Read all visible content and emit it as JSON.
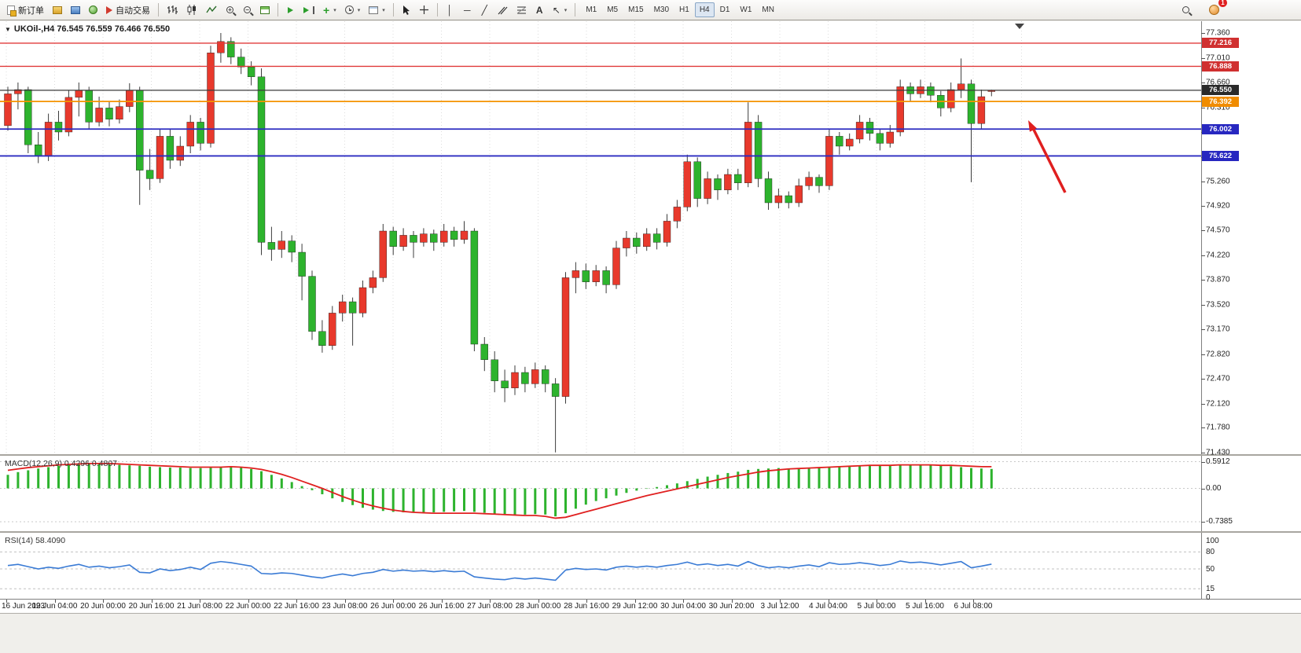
{
  "toolbar": {
    "new_order_label": "新订单",
    "autotrading_label": "自动交易",
    "timeframes": [
      "M1",
      "M5",
      "M15",
      "M30",
      "H1",
      "H4",
      "D1",
      "W1",
      "MN"
    ],
    "active_timeframe": "H4",
    "notification_badge": "1",
    "text_tool_label": "A"
  },
  "chart": {
    "title": "UKOil-,H4 76.545 76.559 76.466 76.550",
    "symbol": "UKOil-",
    "timeframe": "H4",
    "open": "76.545",
    "high": "76.559",
    "low": "76.466",
    "close": "76.550"
  },
  "price_scale": {
    "ticks": [
      {
        "label": "77.360",
        "v": 77.36
      },
      {
        "label": "77.010",
        "v": 77.01
      },
      {
        "label": "76.660",
        "v": 76.66
      },
      {
        "label": "76.310",
        "v": 76.31
      },
      {
        "label": "75.960",
        "v": 75.96
      },
      {
        "label": "75.610",
        "v": 75.61
      },
      {
        "label": "75.260",
        "v": 75.26
      },
      {
        "label": "74.920",
        "v": 74.92
      },
      {
        "label": "74.570",
        "v": 74.57
      },
      {
        "label": "74.220",
        "v": 74.22
      },
      {
        "label": "73.870",
        "v": 73.87
      },
      {
        "label": "73.520",
        "v": 73.52
      },
      {
        "label": "73.170",
        "v": 73.17
      },
      {
        "label": "72.820",
        "v": 72.82
      },
      {
        "label": "72.470",
        "v": 72.47
      },
      {
        "label": "72.120",
        "v": 72.12
      },
      {
        "label": "71.780",
        "v": 71.78
      },
      {
        "label": "71.430",
        "v": 71.43
      }
    ],
    "badges": [
      {
        "label": "77.216",
        "v": 77.216,
        "color": "#d03030"
      },
      {
        "label": "76.888",
        "v": 76.888,
        "color": "#d03030"
      },
      {
        "label": "76.550",
        "v": 76.55,
        "color": "#2a2a2a"
      },
      {
        "label": "76.392",
        "v": 76.392,
        "color": "#f08c00"
      },
      {
        "label": "76.002",
        "v": 76.002,
        "color": "#2727c0"
      },
      {
        "label": "75.622",
        "v": 75.622,
        "color": "#2727c0"
      }
    ]
  },
  "hlines": [
    {
      "v": 77.216,
      "color": "#e03b3b",
      "w": 1.4
    },
    {
      "v": 76.888,
      "color": "#e03b3b",
      "w": 1.4
    },
    {
      "v": 76.55,
      "color": "#3a3a3a",
      "w": 1.2
    },
    {
      "v": 76.392,
      "color": "#f59300",
      "w": 1.8
    },
    {
      "v": 76.002,
      "color": "#2b2bc0",
      "w": 1.8
    },
    {
      "v": 75.622,
      "color": "#2b2bc0",
      "w": 1.8
    }
  ],
  "time_axis": [
    "16 Jun 2023",
    "19 Jun 04:00",
    "20 Jun 00:00",
    "20 Jun 16:00",
    "21 Jun 08:00",
    "22 Jun 00:00",
    "22 Jun 16:00",
    "23 Jun 08:00",
    "26 Jun 00:00",
    "26 Jun 16:00",
    "27 Jun 08:00",
    "28 Jun 00:00",
    "28 Jun 16:00",
    "29 Jun 12:00",
    "30 Jun 04:00",
    "30 Jun 20:00",
    "3 Jul 12:00",
    "4 Jul 04:00",
    "5 Jul 00:00",
    "5 Jul 16:00",
    "6 Jul 08:00"
  ],
  "annotation": {
    "type": "arrow",
    "color": "#e01f1f"
  },
  "chart_data": {
    "type": "candlestick",
    "symbol": "UKOil-",
    "period": "H4",
    "price_range": [
      71.43,
      77.36
    ],
    "up_color": "#e8392c",
    "down_color": "#2db32d",
    "wick_color": "#3c3c3c",
    "candles": [
      [
        76.05,
        76.6,
        75.98,
        76.5
      ],
      [
        76.5,
        76.66,
        76.28,
        76.56
      ],
      [
        76.56,
        76.6,
        75.66,
        75.78
      ],
      [
        75.78,
        75.96,
        75.52,
        75.62
      ],
      [
        75.62,
        76.22,
        75.55,
        76.1
      ],
      [
        76.1,
        76.26,
        75.84,
        75.96
      ],
      [
        75.96,
        76.55,
        75.9,
        76.45
      ],
      [
        76.45,
        76.66,
        76.18,
        76.55
      ],
      [
        76.55,
        76.6,
        76.0,
        76.1
      ],
      [
        76.1,
        76.46,
        76.04,
        76.3
      ],
      [
        76.3,
        76.4,
        76.04,
        76.14
      ],
      [
        76.14,
        76.42,
        76.08,
        76.32
      ],
      [
        76.32,
        76.65,
        76.24,
        76.55
      ],
      [
        76.55,
        76.6,
        74.93,
        75.42
      ],
      [
        75.42,
        75.72,
        75.14,
        75.3
      ],
      [
        75.3,
        76.0,
        75.24,
        75.9
      ],
      [
        75.9,
        76.0,
        75.44,
        75.56
      ],
      [
        75.56,
        75.9,
        75.48,
        75.76
      ],
      [
        75.76,
        76.2,
        75.66,
        76.1
      ],
      [
        76.1,
        76.16,
        75.7,
        75.8
      ],
      [
        75.8,
        77.18,
        75.74,
        77.08
      ],
      [
        77.08,
        77.36,
        76.94,
        77.24
      ],
      [
        77.24,
        77.3,
        76.92,
        77.02
      ],
      [
        77.02,
        77.14,
        76.78,
        76.88
      ],
      [
        76.88,
        76.96,
        76.62,
        76.74
      ],
      [
        76.74,
        76.86,
        74.22,
        74.4
      ],
      [
        74.4,
        74.62,
        74.14,
        74.3
      ],
      [
        74.3,
        74.56,
        74.18,
        74.42
      ],
      [
        74.42,
        74.5,
        74.12,
        74.26
      ],
      [
        74.26,
        74.38,
        73.58,
        73.92
      ],
      [
        73.92,
        74.0,
        73.02,
        73.14
      ],
      [
        73.14,
        73.3,
        72.84,
        72.94
      ],
      [
        72.94,
        73.5,
        72.88,
        73.4
      ],
      [
        73.4,
        73.66,
        73.28,
        73.56
      ],
      [
        73.56,
        73.62,
        72.94,
        73.4
      ],
      [
        73.4,
        73.86,
        73.34,
        73.76
      ],
      [
        73.76,
        74.0,
        73.68,
        73.9
      ],
      [
        73.9,
        74.66,
        73.84,
        74.56
      ],
      [
        74.56,
        74.62,
        74.22,
        74.34
      ],
      [
        74.34,
        74.6,
        74.28,
        74.5
      ],
      [
        74.5,
        74.56,
        74.18,
        74.4
      ],
      [
        74.4,
        74.6,
        74.34,
        74.52
      ],
      [
        74.52,
        74.58,
        74.28,
        74.4
      ],
      [
        74.4,
        74.66,
        74.34,
        74.56
      ],
      [
        74.56,
        74.62,
        74.34,
        74.44
      ],
      [
        74.44,
        74.7,
        74.38,
        74.56
      ],
      [
        74.56,
        74.6,
        72.86,
        72.96
      ],
      [
        72.96,
        73.06,
        72.58,
        72.74
      ],
      [
        72.74,
        72.86,
        72.28,
        72.44
      ],
      [
        72.44,
        72.6,
        72.14,
        72.34
      ],
      [
        72.34,
        72.66,
        72.24,
        72.56
      ],
      [
        72.56,
        72.64,
        72.28,
        72.4
      ],
      [
        72.4,
        72.7,
        72.34,
        72.6
      ],
      [
        72.6,
        72.66,
        72.28,
        72.4
      ],
      [
        72.4,
        72.48,
        71.43,
        72.22
      ],
      [
        72.22,
        73.98,
        72.12,
        73.9
      ],
      [
        73.9,
        74.12,
        73.68,
        74.0
      ],
      [
        74.0,
        74.1,
        73.74,
        73.84
      ],
      [
        73.84,
        74.08,
        73.78,
        74.0
      ],
      [
        74.0,
        74.06,
        73.68,
        73.8
      ],
      [
        73.8,
        74.42,
        73.74,
        74.32
      ],
      [
        74.32,
        74.56,
        74.2,
        74.46
      ],
      [
        74.46,
        74.54,
        74.24,
        74.34
      ],
      [
        74.34,
        74.6,
        74.28,
        74.52
      ],
      [
        74.52,
        74.6,
        74.3,
        74.4
      ],
      [
        74.4,
        74.8,
        74.34,
        74.7
      ],
      [
        74.7,
        75.0,
        74.6,
        74.9
      ],
      [
        74.9,
        75.64,
        74.84,
        75.54
      ],
      [
        75.54,
        75.6,
        74.9,
        75.02
      ],
      [
        75.02,
        75.4,
        74.94,
        75.3
      ],
      [
        75.3,
        75.36,
        75.0,
        75.14
      ],
      [
        75.14,
        75.44,
        75.08,
        75.36
      ],
      [
        75.36,
        75.44,
        75.14,
        75.24
      ],
      [
        75.24,
        76.38,
        75.18,
        76.1
      ],
      [
        76.1,
        76.2,
        75.18,
        75.3
      ],
      [
        75.3,
        75.4,
        74.86,
        74.96
      ],
      [
        74.96,
        75.16,
        74.88,
        75.06
      ],
      [
        75.06,
        75.12,
        74.88,
        74.96
      ],
      [
        74.96,
        75.3,
        74.9,
        75.2
      ],
      [
        75.2,
        75.4,
        75.14,
        75.32
      ],
      [
        75.32,
        75.36,
        75.1,
        75.2
      ],
      [
        75.2,
        76.0,
        75.14,
        75.9
      ],
      [
        75.9,
        75.96,
        75.64,
        75.76
      ],
      [
        75.76,
        75.94,
        75.7,
        75.86
      ],
      [
        75.86,
        76.2,
        75.8,
        76.1
      ],
      [
        76.1,
        76.16,
        75.84,
        75.94
      ],
      [
        75.94,
        76.0,
        75.7,
        75.8
      ],
      [
        75.8,
        76.06,
        75.74,
        75.96
      ],
      [
        75.96,
        76.7,
        75.9,
        76.6
      ],
      [
        76.6,
        76.66,
        76.4,
        76.5
      ],
      [
        76.5,
        76.7,
        76.44,
        76.6
      ],
      [
        76.6,
        76.66,
        76.38,
        76.48
      ],
      [
        76.48,
        76.54,
        76.18,
        76.3
      ],
      [
        76.3,
        76.66,
        76.24,
        76.56
      ],
      [
        76.56,
        77.0,
        76.44,
        76.64
      ],
      [
        76.64,
        76.7,
        75.25,
        76.08
      ],
      [
        76.08,
        76.56,
        76.0,
        76.46
      ],
      [
        76.545,
        76.559,
        76.466,
        76.55
      ]
    ],
    "macd": {
      "label": "MACD(12,26,9) 0.4296 0.4807",
      "hist_color": "#2db32d",
      "signal_color": "#e02020",
      "scale": [
        {
          "label": "0.5912",
          "v": 0.5912
        },
        {
          "label": "0.00",
          "v": 0
        },
        {
          "label": "-0.7385",
          "v": -0.7385
        }
      ],
      "hist": [
        0.3,
        0.36,
        0.4,
        0.44,
        0.47,
        0.5,
        0.52,
        0.53,
        0.54,
        0.54,
        0.53,
        0.52,
        0.51,
        0.5,
        0.48,
        0.47,
        0.46,
        0.46,
        0.45,
        0.45,
        0.46,
        0.48,
        0.48,
        0.46,
        0.43,
        0.38,
        0.3,
        0.22,
        0.14,
        0.05,
        -0.04,
        -0.13,
        -0.22,
        -0.3,
        -0.37,
        -0.43,
        -0.47,
        -0.5,
        -0.52,
        -0.53,
        -0.54,
        -0.54,
        -0.53,
        -0.52,
        -0.51,
        -0.5,
        -0.52,
        -0.54,
        -0.56,
        -0.57,
        -0.58,
        -0.58,
        -0.57,
        -0.58,
        -0.62,
        -0.55,
        -0.45,
        -0.36,
        -0.28,
        -0.22,
        -0.16,
        -0.1,
        -0.05,
        -0.01,
        0.03,
        0.07,
        0.11,
        0.16,
        0.21,
        0.26,
        0.3,
        0.34,
        0.37,
        0.41,
        0.43,
        0.44,
        0.45,
        0.44,
        0.44,
        0.45,
        0.46,
        0.48,
        0.49,
        0.5,
        0.51,
        0.51,
        0.5,
        0.5,
        0.51,
        0.52,
        0.52,
        0.51,
        0.5,
        0.49,
        0.47,
        0.45,
        0.44,
        0.43
      ],
      "signal": [
        0.4,
        0.43,
        0.46,
        0.48,
        0.5,
        0.52,
        0.53,
        0.54,
        0.55,
        0.55,
        0.55,
        0.54,
        0.53,
        0.52,
        0.51,
        0.5,
        0.49,
        0.48,
        0.47,
        0.47,
        0.47,
        0.47,
        0.48,
        0.47,
        0.45,
        0.42,
        0.37,
        0.31,
        0.24,
        0.16,
        0.08,
        0.0,
        -0.09,
        -0.18,
        -0.26,
        -0.33,
        -0.39,
        -0.44,
        -0.48,
        -0.51,
        -0.53,
        -0.54,
        -0.55,
        -0.55,
        -0.55,
        -0.55,
        -0.55,
        -0.56,
        -0.57,
        -0.58,
        -0.59,
        -0.6,
        -0.6,
        -0.62,
        -0.66,
        -0.64,
        -0.58,
        -0.52,
        -0.46,
        -0.4,
        -0.34,
        -0.28,
        -0.22,
        -0.16,
        -0.11,
        -0.06,
        -0.01,
        0.04,
        0.09,
        0.14,
        0.19,
        0.24,
        0.28,
        0.32,
        0.36,
        0.39,
        0.41,
        0.43,
        0.44,
        0.45,
        0.46,
        0.47,
        0.48,
        0.49,
        0.5,
        0.51,
        0.51,
        0.51,
        0.52,
        0.52,
        0.52,
        0.52,
        0.51,
        0.51,
        0.5,
        0.49,
        0.48,
        0.48
      ]
    },
    "rsi": {
      "label": "RSI(14) 58.4090",
      "line_color": "#3a7bd5",
      "levels": [
        80,
        50,
        15
      ],
      "scale": [
        {
          "label": "100",
          "v": 100
        },
        {
          "label": "80",
          "v": 80
        },
        {
          "label": "50",
          "v": 50
        },
        {
          "label": "15",
          "v": 15
        },
        {
          "label": "0",
          "v": 0
        }
      ],
      "values": [
        56,
        58,
        54,
        50,
        53,
        51,
        55,
        58,
        53,
        55,
        52,
        54,
        57,
        44,
        43,
        50,
        47,
        49,
        53,
        49,
        60,
        63,
        61,
        58,
        55,
        42,
        41,
        43,
        42,
        39,
        36,
        34,
        38,
        41,
        38,
        42,
        44,
        49,
        46,
        48,
        46,
        47,
        45,
        47,
        45,
        46,
        36,
        34,
        32,
        31,
        34,
        32,
        34,
        32,
        30,
        48,
        51,
        49,
        50,
        48,
        53,
        55,
        53,
        55,
        53,
        56,
        58,
        62,
        57,
        59,
        56,
        58,
        55,
        63,
        56,
        52,
        54,
        52,
        55,
        57,
        54,
        61,
        58,
        59,
        61,
        59,
        56,
        58,
        64,
        61,
        62,
        60,
        57,
        60,
        63,
        52,
        55,
        58.41
      ]
    }
  }
}
